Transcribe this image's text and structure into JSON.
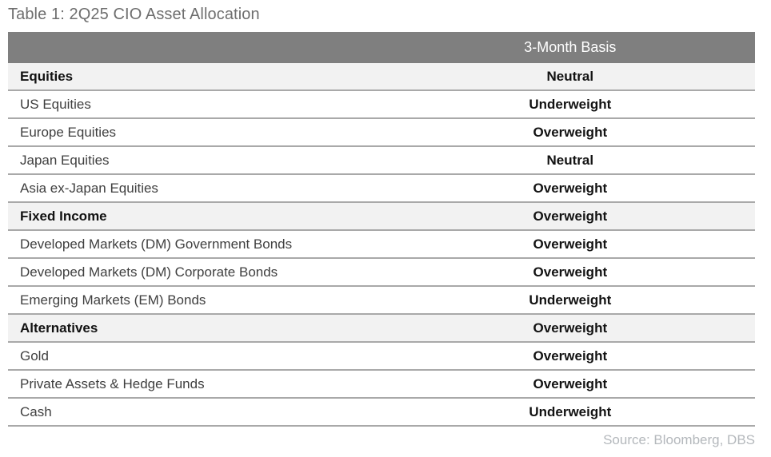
{
  "chart_data": {
    "type": "table",
    "title": "Table 1: 2Q25 CIO Asset Allocation",
    "columns": [
      "",
      "3-Month Basis"
    ],
    "rows": [
      {
        "label": "Equities",
        "value": "Neutral",
        "is_category": true
      },
      {
        "label": "US Equities",
        "value": "Underweight",
        "is_category": false
      },
      {
        "label": "Europe Equities",
        "value": "Overweight",
        "is_category": false
      },
      {
        "label": "Japan Equities",
        "value": "Neutral",
        "is_category": false
      },
      {
        "label": "Asia ex-Japan Equities",
        "value": "Overweight",
        "is_category": false
      },
      {
        "label": "Fixed Income",
        "value": "Overweight",
        "is_category": true
      },
      {
        "label": "Developed Markets (DM) Government Bonds",
        "value": "Overweight",
        "is_category": false
      },
      {
        "label": "Developed Markets (DM) Corporate Bonds",
        "value": "Overweight",
        "is_category": false
      },
      {
        "label": "Emerging Markets (EM) Bonds",
        "value": "Underweight",
        "is_category": false
      },
      {
        "label": "Alternatives",
        "value": "Overweight",
        "is_category": true
      },
      {
        "label": "Gold",
        "value": "Overweight",
        "is_category": false
      },
      {
        "label": "Private Assets & Hedge Funds",
        "value": "Overweight",
        "is_category": false
      },
      {
        "label": "Cash",
        "value": "Underweight",
        "is_category": false
      }
    ],
    "source": "Source: Bloomberg, DBS",
    "layout": {
      "grid": "horizontal-row-separators-only",
      "value_column_alignment": "center",
      "category_rows_shaded": true
    }
  },
  "colors": {
    "header_bg": "#7f7f7f",
    "header_text": "#ffffff",
    "category_row_bg": "#f2f2f2",
    "row_separator": "#a9a9a9",
    "title_text": "#6e6e6e",
    "label_text": "#3f3f3f",
    "emphasis_text": "#121212",
    "source_text": "#b4b8bc"
  }
}
